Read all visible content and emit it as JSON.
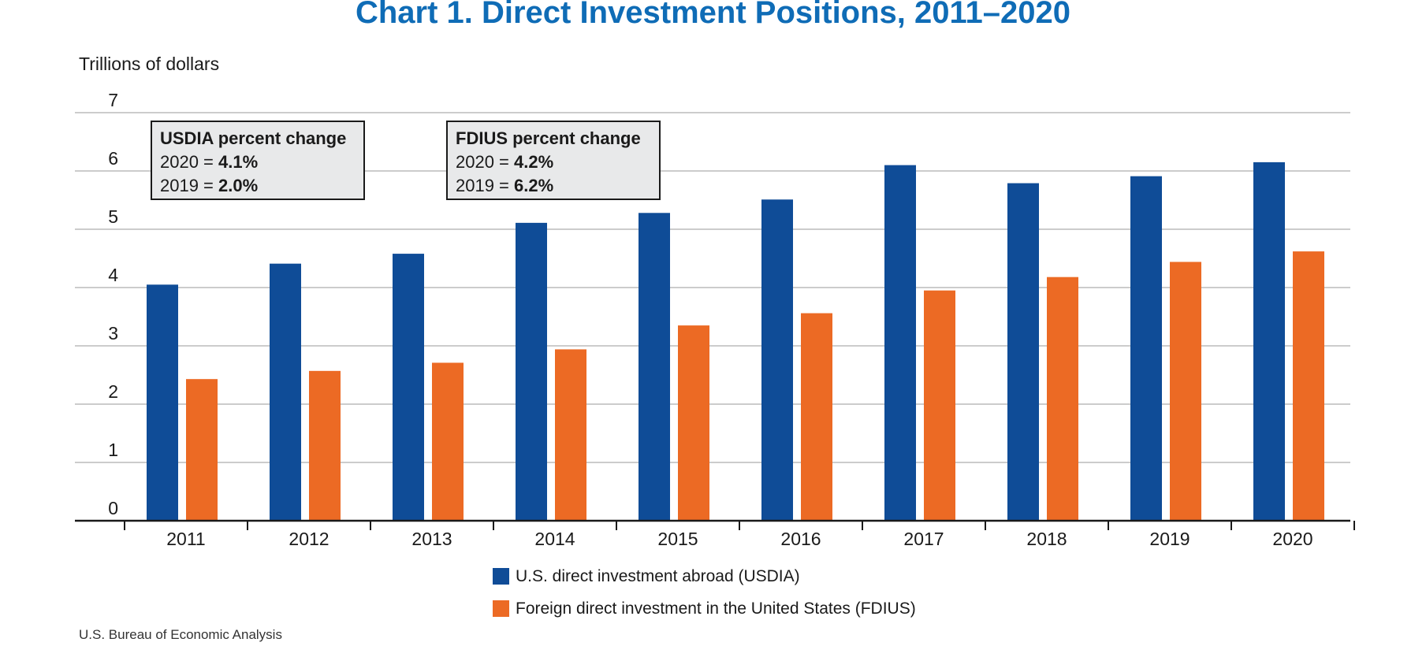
{
  "colors": {
    "usdia": "#0f4c97",
    "fdius": "#ec6a24",
    "title": "#0f6cb6",
    "grid": "#cccccc",
    "annotation_bg": "#e8e9ea"
  },
  "annotations": [
    {
      "header": "USDIA percent change",
      "rows": [
        {
          "prefix": "2020 = ",
          "value": "4.1%"
        },
        {
          "prefix": "2019 = ",
          "value": "2.0%"
        }
      ]
    },
    {
      "header": "FDIUS percent change",
      "rows": [
        {
          "prefix": "2020 = ",
          "value": "4.2%"
        },
        {
          "prefix": "2019 = ",
          "value": "6.2%"
        }
      ]
    }
  ],
  "source": "U.S. Bureau of Economic Analysis",
  "chart_data": {
    "type": "bar",
    "title": "Chart 1. Direct Investment Positions, 2011–2020",
    "ylabel": "Trillions of dollars",
    "xlabel": "",
    "ylim": [
      0,
      7
    ],
    "yticks": [
      "0",
      "1",
      "2",
      "3",
      "4",
      "5",
      "6",
      "7"
    ],
    "grid": true,
    "legend_position": "bottom",
    "categories": [
      "2011",
      "2012",
      "2013",
      "2014",
      "2015",
      "2016",
      "2017",
      "2018",
      "2019",
      "2020"
    ],
    "series": [
      {
        "name": "U.S. direct investment abroad (USDIA)",
        "values": [
          4.05,
          4.41,
          4.58,
          5.11,
          5.28,
          5.51,
          6.1,
          5.79,
          5.91,
          6.15
        ]
      },
      {
        "name": "Foreign direct investment in the United States (FDIUS)",
        "values": [
          2.43,
          2.57,
          2.71,
          2.94,
          3.35,
          3.56,
          3.95,
          4.18,
          4.44,
          4.62
        ]
      }
    ]
  }
}
